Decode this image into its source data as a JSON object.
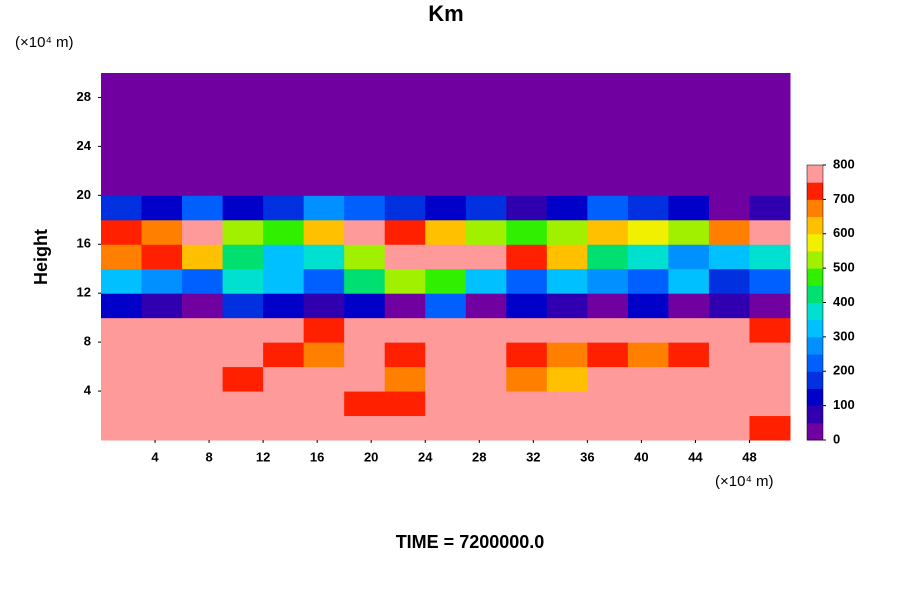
{
  "chart_data": {
    "type": "heatmap",
    "title": "Km",
    "ylabel": "Height",
    "y_unit_label": "(×10⁴ m)",
    "x_unit_label": "(×10⁴ m)",
    "footer": "TIME = 7200000.0",
    "x": [
      0,
      3,
      6,
      9,
      12,
      15,
      18,
      21,
      24,
      27,
      30,
      33,
      36,
      39,
      42,
      45,
      48,
      51
    ],
    "y": [
      0,
      2,
      4,
      6,
      8,
      10,
      12,
      14,
      16,
      18,
      20,
      22,
      24,
      26,
      28,
      30
    ],
    "z": [
      [
        800,
        800,
        800,
        800,
        800,
        800,
        750,
        800,
        800,
        800,
        800,
        800,
        800,
        800,
        800,
        800,
        700
      ],
      [
        800,
        750,
        800,
        800,
        800,
        800,
        700,
        700,
        800,
        800,
        750,
        800,
        800,
        800,
        750,
        800,
        800
      ],
      [
        750,
        800,
        750,
        700,
        750,
        800,
        800,
        650,
        800,
        750,
        650,
        600,
        800,
        750,
        800,
        750,
        800
      ],
      [
        800,
        800,
        800,
        800,
        700,
        650,
        800,
        700,
        800,
        800,
        700,
        650,
        700,
        650,
        700,
        750,
        800
      ],
      [
        750,
        800,
        800,
        800,
        750,
        700,
        800,
        800,
        800,
        750,
        800,
        800,
        800,
        800,
        800,
        800,
        700
      ],
      [
        100,
        50,
        0,
        150,
        100,
        50,
        100,
        0,
        200,
        0,
        100,
        50,
        0,
        100,
        0,
        50,
        0
      ],
      [
        300,
        250,
        200,
        350,
        300,
        200,
        400,
        500,
        450,
        300,
        200,
        300,
        250,
        200,
        300,
        150,
        200
      ],
      [
        650,
        700,
        600,
        400,
        300,
        350,
        500,
        800,
        800,
        750,
        700,
        600,
        400,
        350,
        250,
        300,
        350
      ],
      [
        700,
        650,
        750,
        500,
        450,
        600,
        750,
        700,
        600,
        500,
        450,
        500,
        600,
        550,
        500,
        650,
        750
      ],
      [
        150,
        100,
        200,
        100,
        150,
        250,
        200,
        150,
        100,
        150,
        50,
        100,
        200,
        150,
        100,
        0,
        50
      ],
      [
        0,
        0,
        0,
        0,
        0,
        0,
        0,
        0,
        0,
        0,
        0,
        0,
        0,
        0,
        0,
        0,
        0
      ],
      [
        0,
        0,
        0,
        0,
        0,
        0,
        0,
        0,
        0,
        0,
        0,
        0,
        0,
        0,
        0,
        0,
        0
      ],
      [
        0,
        0,
        0,
        0,
        0,
        0,
        0,
        0,
        0,
        0,
        0,
        0,
        0,
        0,
        0,
        0,
        0
      ],
      [
        0,
        0,
        0,
        0,
        0,
        0,
        0,
        0,
        0,
        0,
        0,
        0,
        0,
        0,
        0,
        0,
        0
      ],
      [
        0,
        0,
        0,
        0,
        0,
        0,
        0,
        0,
        0,
        0,
        0,
        0,
        0,
        0,
        0,
        0,
        0
      ]
    ],
    "xlim": [
      0,
      51
    ],
    "ylim": [
      0,
      30
    ],
    "xticks": [
      4,
      8,
      12,
      16,
      20,
      24,
      28,
      32,
      36,
      40,
      44,
      48
    ],
    "yticks": [
      4,
      8,
      12,
      16,
      20,
      24,
      28
    ],
    "zlim": [
      0,
      800
    ],
    "zticks": [
      0,
      100,
      200,
      300,
      400,
      500,
      600,
      700,
      800
    ],
    "colorscale": [
      "#7000a0",
      "#3000b0",
      "#0000c8",
      "#0030e0",
      "#0060ff",
      "#0090ff",
      "#00c0ff",
      "#00e0d0",
      "#00e070",
      "#30f000",
      "#a0f000",
      "#f0f000",
      "#ffc000",
      "#ff8000",
      "#ff2000",
      "#ff9a9a"
    ]
  }
}
